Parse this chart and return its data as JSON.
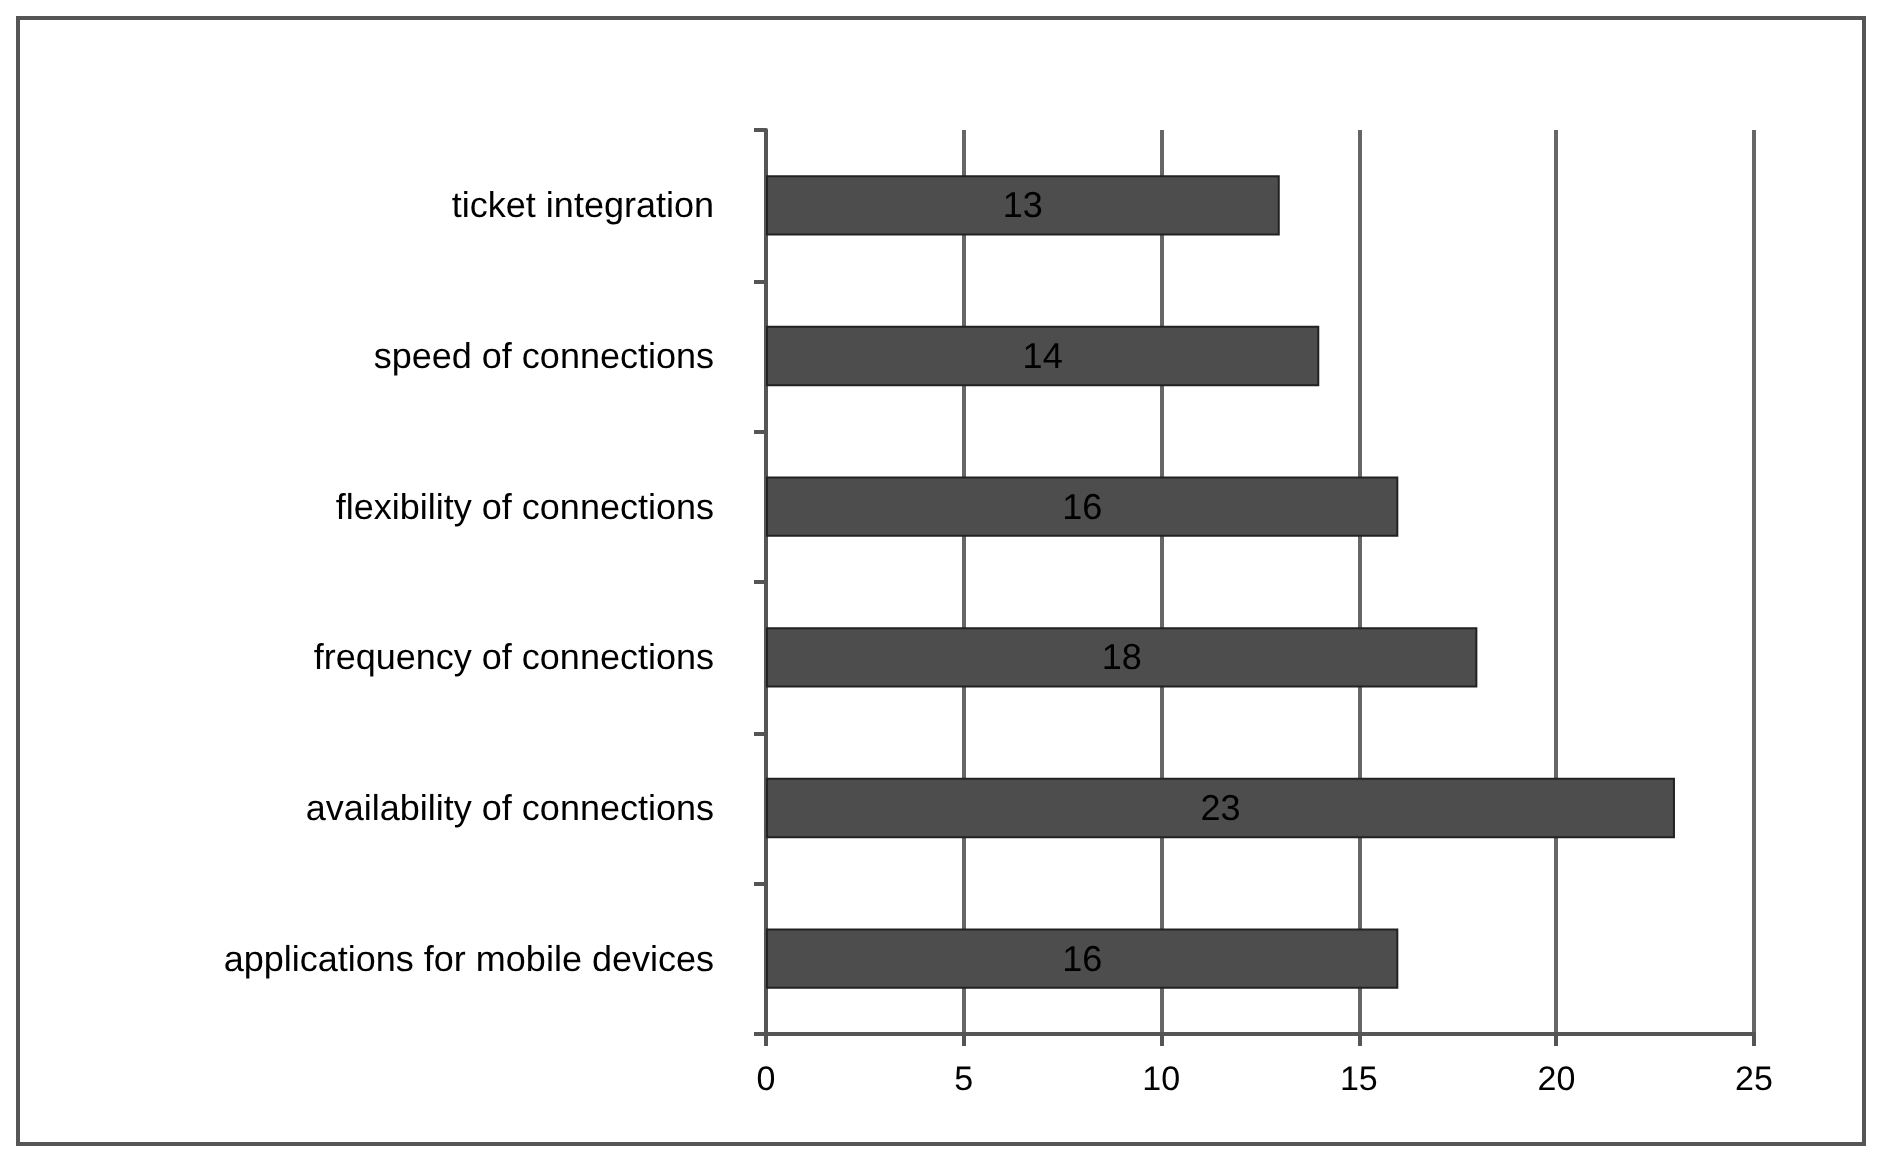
{
  "chart_data": {
    "type": "bar",
    "orientation": "horizontal",
    "categories": [
      "ticket integration",
      "speed of connections",
      "flexibility of connections",
      "frequency of connections",
      "availability of connections",
      "applications for mobile devices"
    ],
    "values": [
      13,
      14,
      16,
      18,
      23,
      16
    ],
    "color": "#4d4d4d",
    "xlim": [
      0,
      25
    ],
    "xticks": [
      0,
      5,
      10,
      15,
      20,
      25
    ],
    "grid": "x",
    "data_labels": true
  }
}
